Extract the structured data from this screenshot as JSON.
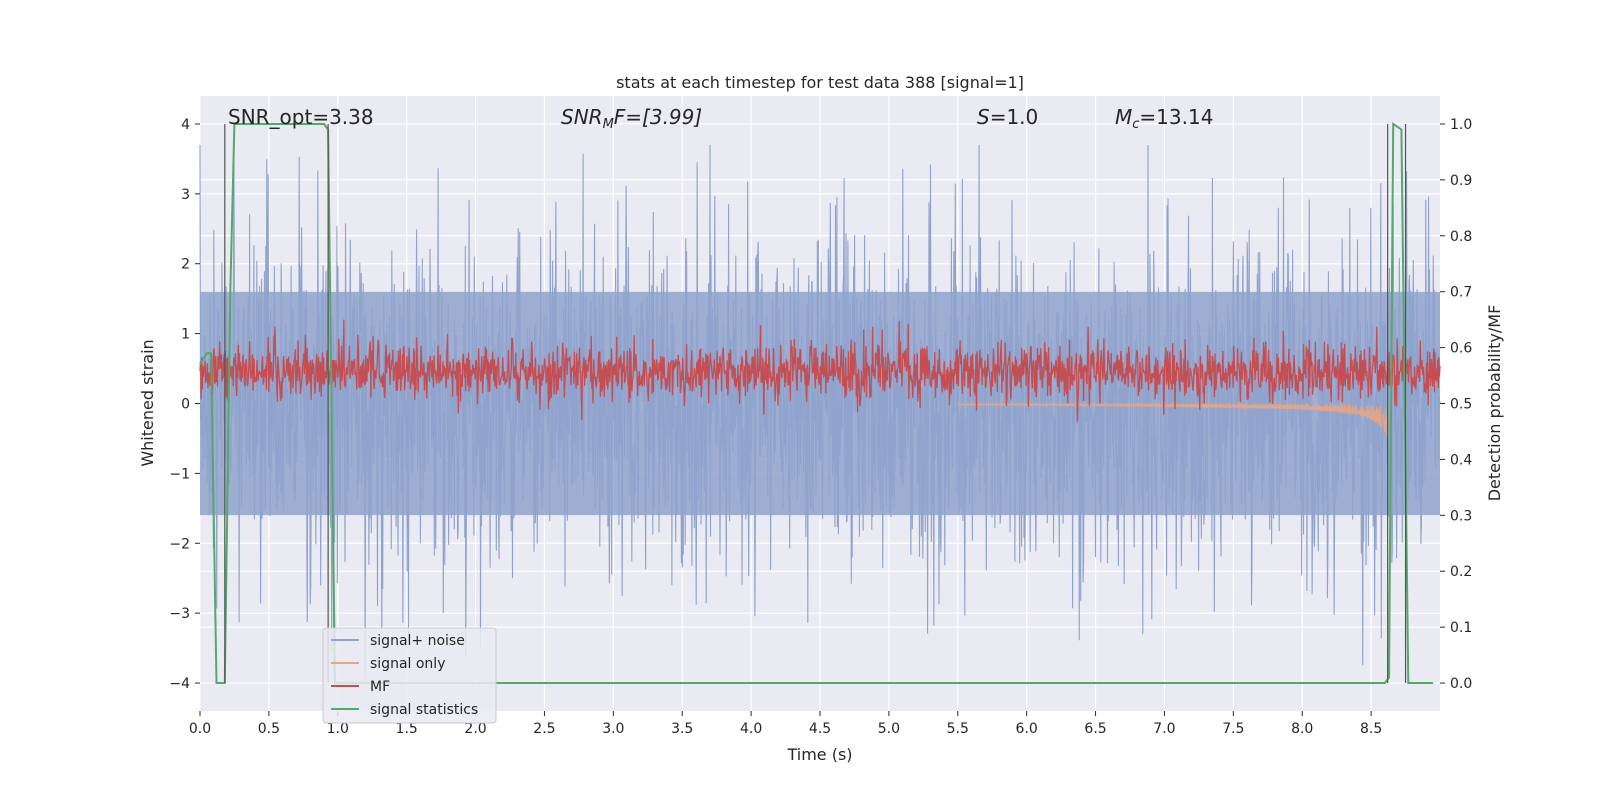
{
  "chart_data": {
    "type": "line",
    "title": "stats at each timestep for test data 388 [signal=1]",
    "xlabel": "Time (s)",
    "ylabel": "Whitened strain",
    "y2label": "Detection probability/MF",
    "xlim": [
      0.0,
      9.0
    ],
    "ylim": [
      -4.4,
      4.4
    ],
    "y2lim": [
      -0.05,
      1.05
    ],
    "x_ticks": [
      0.0,
      0.5,
      1.0,
      1.5,
      2.0,
      2.5,
      3.0,
      3.5,
      4.0,
      4.5,
      5.0,
      5.5,
      6.0,
      6.5,
      7.0,
      7.5,
      8.0,
      8.5
    ],
    "x_tick_labels": [
      "0.0",
      "0.5",
      "1.0",
      "1.5",
      "2.0",
      "2.5",
      "3.0",
      "3.5",
      "4.0",
      "4.5",
      "5.0",
      "5.5",
      "6.0",
      "6.5",
      "7.0",
      "7.5",
      "8.0",
      "8.5"
    ],
    "y_ticks": [
      -4,
      -3,
      -2,
      -1,
      0,
      1,
      2,
      3,
      4
    ],
    "y_tick_labels": [
      "−4",
      "−3",
      "−2",
      "−1",
      "0",
      "1",
      "2",
      "3",
      "4"
    ],
    "y2_ticks": [
      0.0,
      0.1,
      0.2,
      0.3,
      0.4,
      0.5,
      0.6,
      0.7,
      0.8,
      0.9,
      1.0
    ],
    "y2_tick_labels": [
      "0.0",
      "0.1",
      "0.2",
      "0.3",
      "0.4",
      "0.5",
      "0.6",
      "0.7",
      "0.8",
      "0.9",
      "1.0"
    ],
    "grid": true,
    "legend_position": "lower-left",
    "annotations": {
      "snr_opt": "SNR_opt=3.38",
      "snr_mf_var": "SNR",
      "snr_mf_sub": "M",
      "snr_mf_rest": "F=[3.99]",
      "s_var": "S",
      "s_rest": "=1.0",
      "mc_var": "M",
      "mc_sub": "c",
      "mc_rest": "=13.14"
    },
    "vertical_markers": [
      0.18,
      0.93,
      8.62,
      8.75
    ],
    "series": [
      {
        "name": "signal+ noise",
        "color": "#8fa3cc",
        "style": "noise band",
        "envelope_typical": [
          -1.6,
          1.6
        ],
        "peak_max": 3.7,
        "peak_min": -4.0
      },
      {
        "name": "signal only",
        "color": "#e8a585",
        "style": "chirp",
        "chirp_end_time": 8.62,
        "amplitude_at_end": 0.5
      },
      {
        "name": "MF",
        "color": "#c44e52",
        "axis": "right",
        "style": "noisy band",
        "band": [
          0.51,
          0.6
        ]
      },
      {
        "name": "signal statistics",
        "color": "#55a868",
        "axis": "right",
        "points": [
          [
            0.0,
            0.57
          ],
          [
            0.05,
            0.59
          ],
          [
            0.08,
            0.59
          ],
          [
            0.12,
            0.0
          ],
          [
            0.18,
            0.0
          ],
          [
            0.22,
            0.7
          ],
          [
            0.25,
            1.0
          ],
          [
            0.9,
            1.0
          ],
          [
            0.93,
            0.99
          ],
          [
            0.98,
            0.0
          ],
          [
            8.6,
            0.0
          ],
          [
            8.63,
            0.01
          ],
          [
            8.66,
            1.0
          ],
          [
            8.72,
            0.99
          ],
          [
            8.77,
            0.0
          ],
          [
            8.95,
            0.0
          ]
        ]
      }
    ]
  }
}
